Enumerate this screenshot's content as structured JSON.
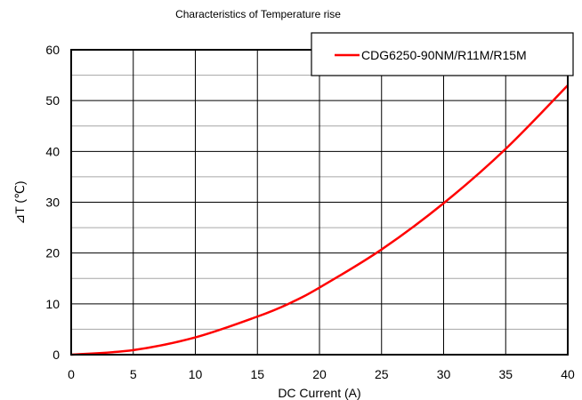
{
  "chart_data": {
    "type": "line",
    "title": "Characteristics of  Temperature rise",
    "xlabel": "DC Current (A)",
    "ylabel": "⊿T (℃)",
    "xlim": [
      0,
      40
    ],
    "ylim": [
      0,
      60
    ],
    "x_ticks": [
      "0",
      "5",
      "10",
      "15",
      "20",
      "25",
      "30",
      "35",
      "40"
    ],
    "y_ticks": [
      "0",
      "10",
      "20",
      "30",
      "40",
      "50",
      "60"
    ],
    "major_grid": true,
    "minor_horizontal_grid_step": 5,
    "legend_position": "top-right",
    "series": [
      {
        "name": "CDG6250-90NM/R11M/R15M",
        "color": "#ff0000",
        "x": [
          0,
          5,
          10,
          15,
          17.5,
          20,
          25,
          30,
          35,
          40
        ],
        "y": [
          0,
          0.9,
          3.4,
          7.5,
          10,
          13.2,
          20.7,
          29.8,
          40.5,
          53
        ]
      }
    ]
  }
}
